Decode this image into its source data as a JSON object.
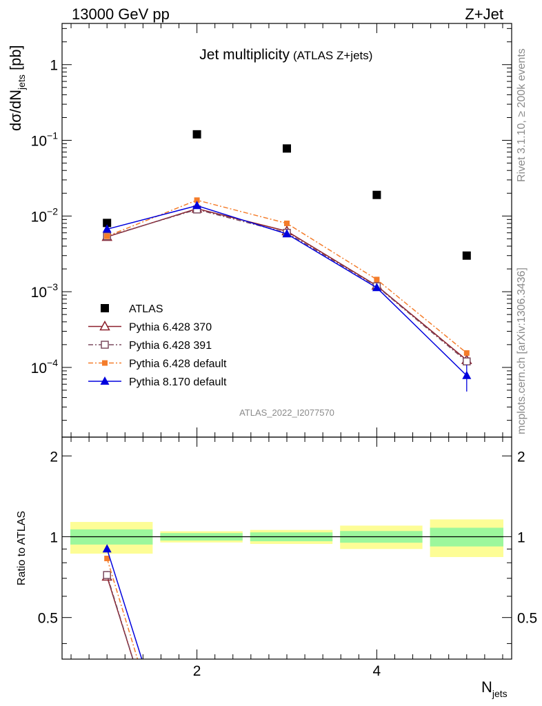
{
  "header": {
    "left": "13000 GeV pp",
    "right": "Z+Jet"
  },
  "title": {
    "main": "Jet multiplicity",
    "sub": "(ATLAS Z+jets)"
  },
  "side_texts": {
    "rivet": "Rivet 3.1.10, ≥ 200k events",
    "mcplots": "mcplots.cern.ch [arXiv:1306.3436]"
  },
  "watermark": "ATLAS_2022_I2077570",
  "colors": {
    "data": "#000000",
    "p370": "#8b1f2b",
    "p391": "#7a4a5e",
    "p6def": "#f47c2a",
    "p8": "#0000dd",
    "band_inner": "#9cf79c",
    "band_outer": "#fdfd96"
  },
  "chart_data": [
    {
      "type": "scatter",
      "panel": "main",
      "ylabel": {
        "base": "dσ/dN",
        "sub": "jets",
        "unit": " [pb]"
      },
      "yscale": "log",
      "xlim": [
        0.5,
        5.5
      ],
      "ylim": [
        1.2e-05,
        3.5
      ],
      "y_tick_labels": [
        {
          "value": 1,
          "label": "1"
        },
        {
          "value": 0.1,
          "base": "10",
          "exp": "−1"
        },
        {
          "value": 0.01,
          "base": "10",
          "exp": "−2"
        },
        {
          "value": 0.001,
          "base": "10",
          "exp": "−3"
        },
        {
          "value": 0.0001,
          "base": "10",
          "exp": "−4"
        }
      ],
      "x": [
        1,
        2,
        3,
        4,
        5
      ],
      "series": [
        {
          "key": "data",
          "name": "ATLAS",
          "marker": "square",
          "line": "none",
          "values": [
            0.0081,
            0.12,
            0.078,
            0.019,
            0.003
          ]
        },
        {
          "key": "p370",
          "name": "Pythia 6.428 370",
          "marker": "triangle-open",
          "line": "solid",
          "values": [
            0.0053,
            0.0125,
            0.0063,
            0.0012,
            0.000125
          ]
        },
        {
          "key": "p391",
          "name": "Pythia 6.428 391",
          "marker": "square-open",
          "line": "dashdot",
          "values": [
            0.0054,
            0.0122,
            0.006,
            0.00118,
            0.00012
          ]
        },
        {
          "key": "p6def",
          "name": "Pythia 6.428 default",
          "marker": "square-small",
          "line": "dashdot",
          "values": [
            0.0054,
            0.0162,
            0.008,
            0.00145,
            0.000155
          ]
        },
        {
          "key": "p8",
          "name": "Pythia 8.170 default",
          "marker": "triangle",
          "line": "solid",
          "values": [
            0.0067,
            0.0137,
            0.0058,
            0.00113,
            7.8e-05
          ],
          "errors_low": [
            0,
            0,
            0,
            0,
            3e-05
          ],
          "errors_high": [
            0,
            0,
            0,
            0,
            3e-05
          ]
        }
      ]
    },
    {
      "type": "scatter",
      "panel": "ratio",
      "ylabel": "Ratio to ATLAS",
      "xlabel": {
        "base": "N",
        "sub": "jets"
      },
      "ylim": [
        0.35,
        2.35
      ],
      "y_tick_labels": [
        0.5,
        1,
        2
      ],
      "x_tick_labels": [
        2,
        4
      ],
      "bands": [
        {
          "x": [
            0.5,
            1.5
          ],
          "inner": [
            0.935,
            1.065
          ],
          "outer": [
            0.865,
            1.135
          ]
        },
        {
          "x": [
            1.5,
            2.5
          ],
          "inner": [
            0.968,
            1.032
          ],
          "outer": [
            0.952,
            1.048
          ]
        },
        {
          "x": [
            2.5,
            3.5
          ],
          "inner": [
            0.962,
            1.038
          ],
          "outer": [
            0.94,
            1.06
          ]
        },
        {
          "x": [
            3.5,
            4.5
          ],
          "inner": [
            0.95,
            1.05
          ],
          "outer": [
            0.9,
            1.1
          ]
        },
        {
          "x": [
            4.5,
            5.5
          ],
          "inner": [
            0.92,
            1.08
          ],
          "outer": [
            0.84,
            1.16
          ]
        }
      ],
      "series": [
        {
          "key": "p370",
          "name": "Pythia 6.428 370",
          "x": [
            1,
            1.35
          ],
          "values": [
            0.71,
            0.3
          ]
        },
        {
          "key": "p391",
          "name": "Pythia 6.428 391",
          "x": [
            1,
            1.35
          ],
          "values": [
            0.72,
            0.3
          ]
        },
        {
          "key": "p6def",
          "name": "Pythia 6.428 default",
          "x": [
            1,
            1.4
          ],
          "values": [
            0.83,
            0.3
          ]
        },
        {
          "key": "p8",
          "name": "Pythia 8.170 default",
          "x": [
            1,
            1.45
          ],
          "values": [
            0.9,
            0.3
          ]
        }
      ]
    }
  ]
}
